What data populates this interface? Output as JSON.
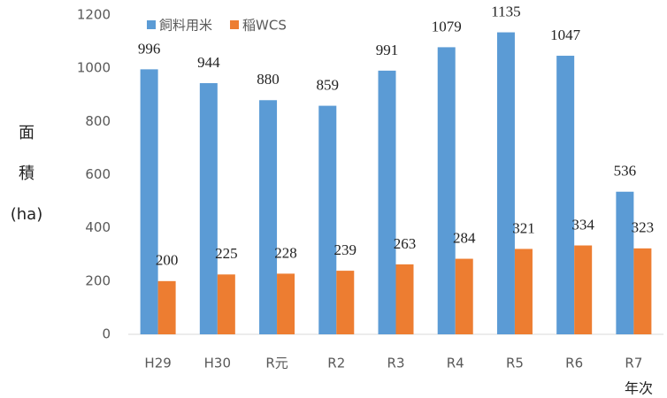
{
  "chart_data": {
    "type": "bar",
    "categories": [
      "H29",
      "H30",
      "R元",
      "R2",
      "R3",
      "R4",
      "R5",
      "R6",
      "R7"
    ],
    "series": [
      {
        "name": "飼料用米",
        "color": "#5b9bd5",
        "values": [
          996,
          944,
          880,
          859,
          991,
          1079,
          1135,
          1047,
          536
        ]
      },
      {
        "name": "稲WCS",
        "color": "#ed7d31",
        "values": [
          200,
          225,
          228,
          239,
          263,
          284,
          321,
          334,
          323
        ]
      }
    ],
    "ylabel_lines": [
      "面",
      "積",
      "(ha)"
    ],
    "xlabel": "年次",
    "ylim": [
      0,
      1200
    ],
    "yticks": [
      0,
      200,
      400,
      600,
      800,
      1000,
      1200
    ],
    "grid": false,
    "legend": "top"
  }
}
